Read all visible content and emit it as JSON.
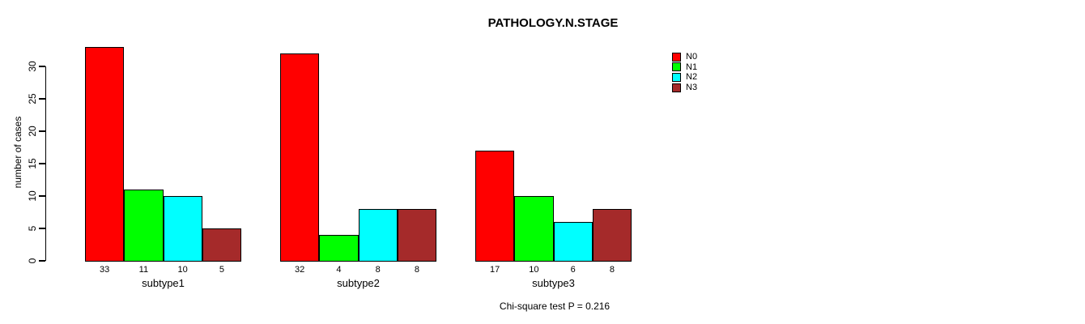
{
  "title": "PATHOLOGY.N.STAGE",
  "footer": "Chi-square test P = 0.216",
  "y_axis": {
    "label": "number of cases"
  },
  "legend": {
    "items": [
      {
        "label": "N0",
        "color": "#FF0000"
      },
      {
        "label": "N1",
        "color": "#00FF00"
      },
      {
        "label": "N2",
        "color": "#00FFFF"
      },
      {
        "label": "N3",
        "color": "#A52A2A"
      }
    ]
  },
  "chart_data": {
    "type": "bar",
    "title": "PATHOLOGY.N.STAGE",
    "xlabel": "",
    "ylabel": "number of cases",
    "categories": [
      "subtype1",
      "subtype2",
      "subtype3"
    ],
    "series": [
      {
        "name": "N0",
        "color": "#FF0000",
        "values": [
          33,
          32,
          17
        ]
      },
      {
        "name": "N1",
        "color": "#00FF00",
        "values": [
          11,
          4,
          10
        ]
      },
      {
        "name": "N2",
        "color": "#00FFFF",
        "values": [
          10,
          8,
          6
        ]
      },
      {
        "name": "N3",
        "color": "#A52A2A",
        "values": [
          5,
          8,
          8
        ]
      }
    ],
    "value_labels": [
      [
        33,
        11,
        10,
        5
      ],
      [
        32,
        4,
        8,
        8
      ],
      [
        17,
        10,
        6,
        8
      ]
    ],
    "yticks": [
      0,
      5,
      10,
      15,
      20,
      25,
      30
    ],
    "ylim": [
      0,
      33
    ],
    "grid": false,
    "legend_position": "top-right",
    "annotation": "Chi-square test P = 0.216"
  }
}
